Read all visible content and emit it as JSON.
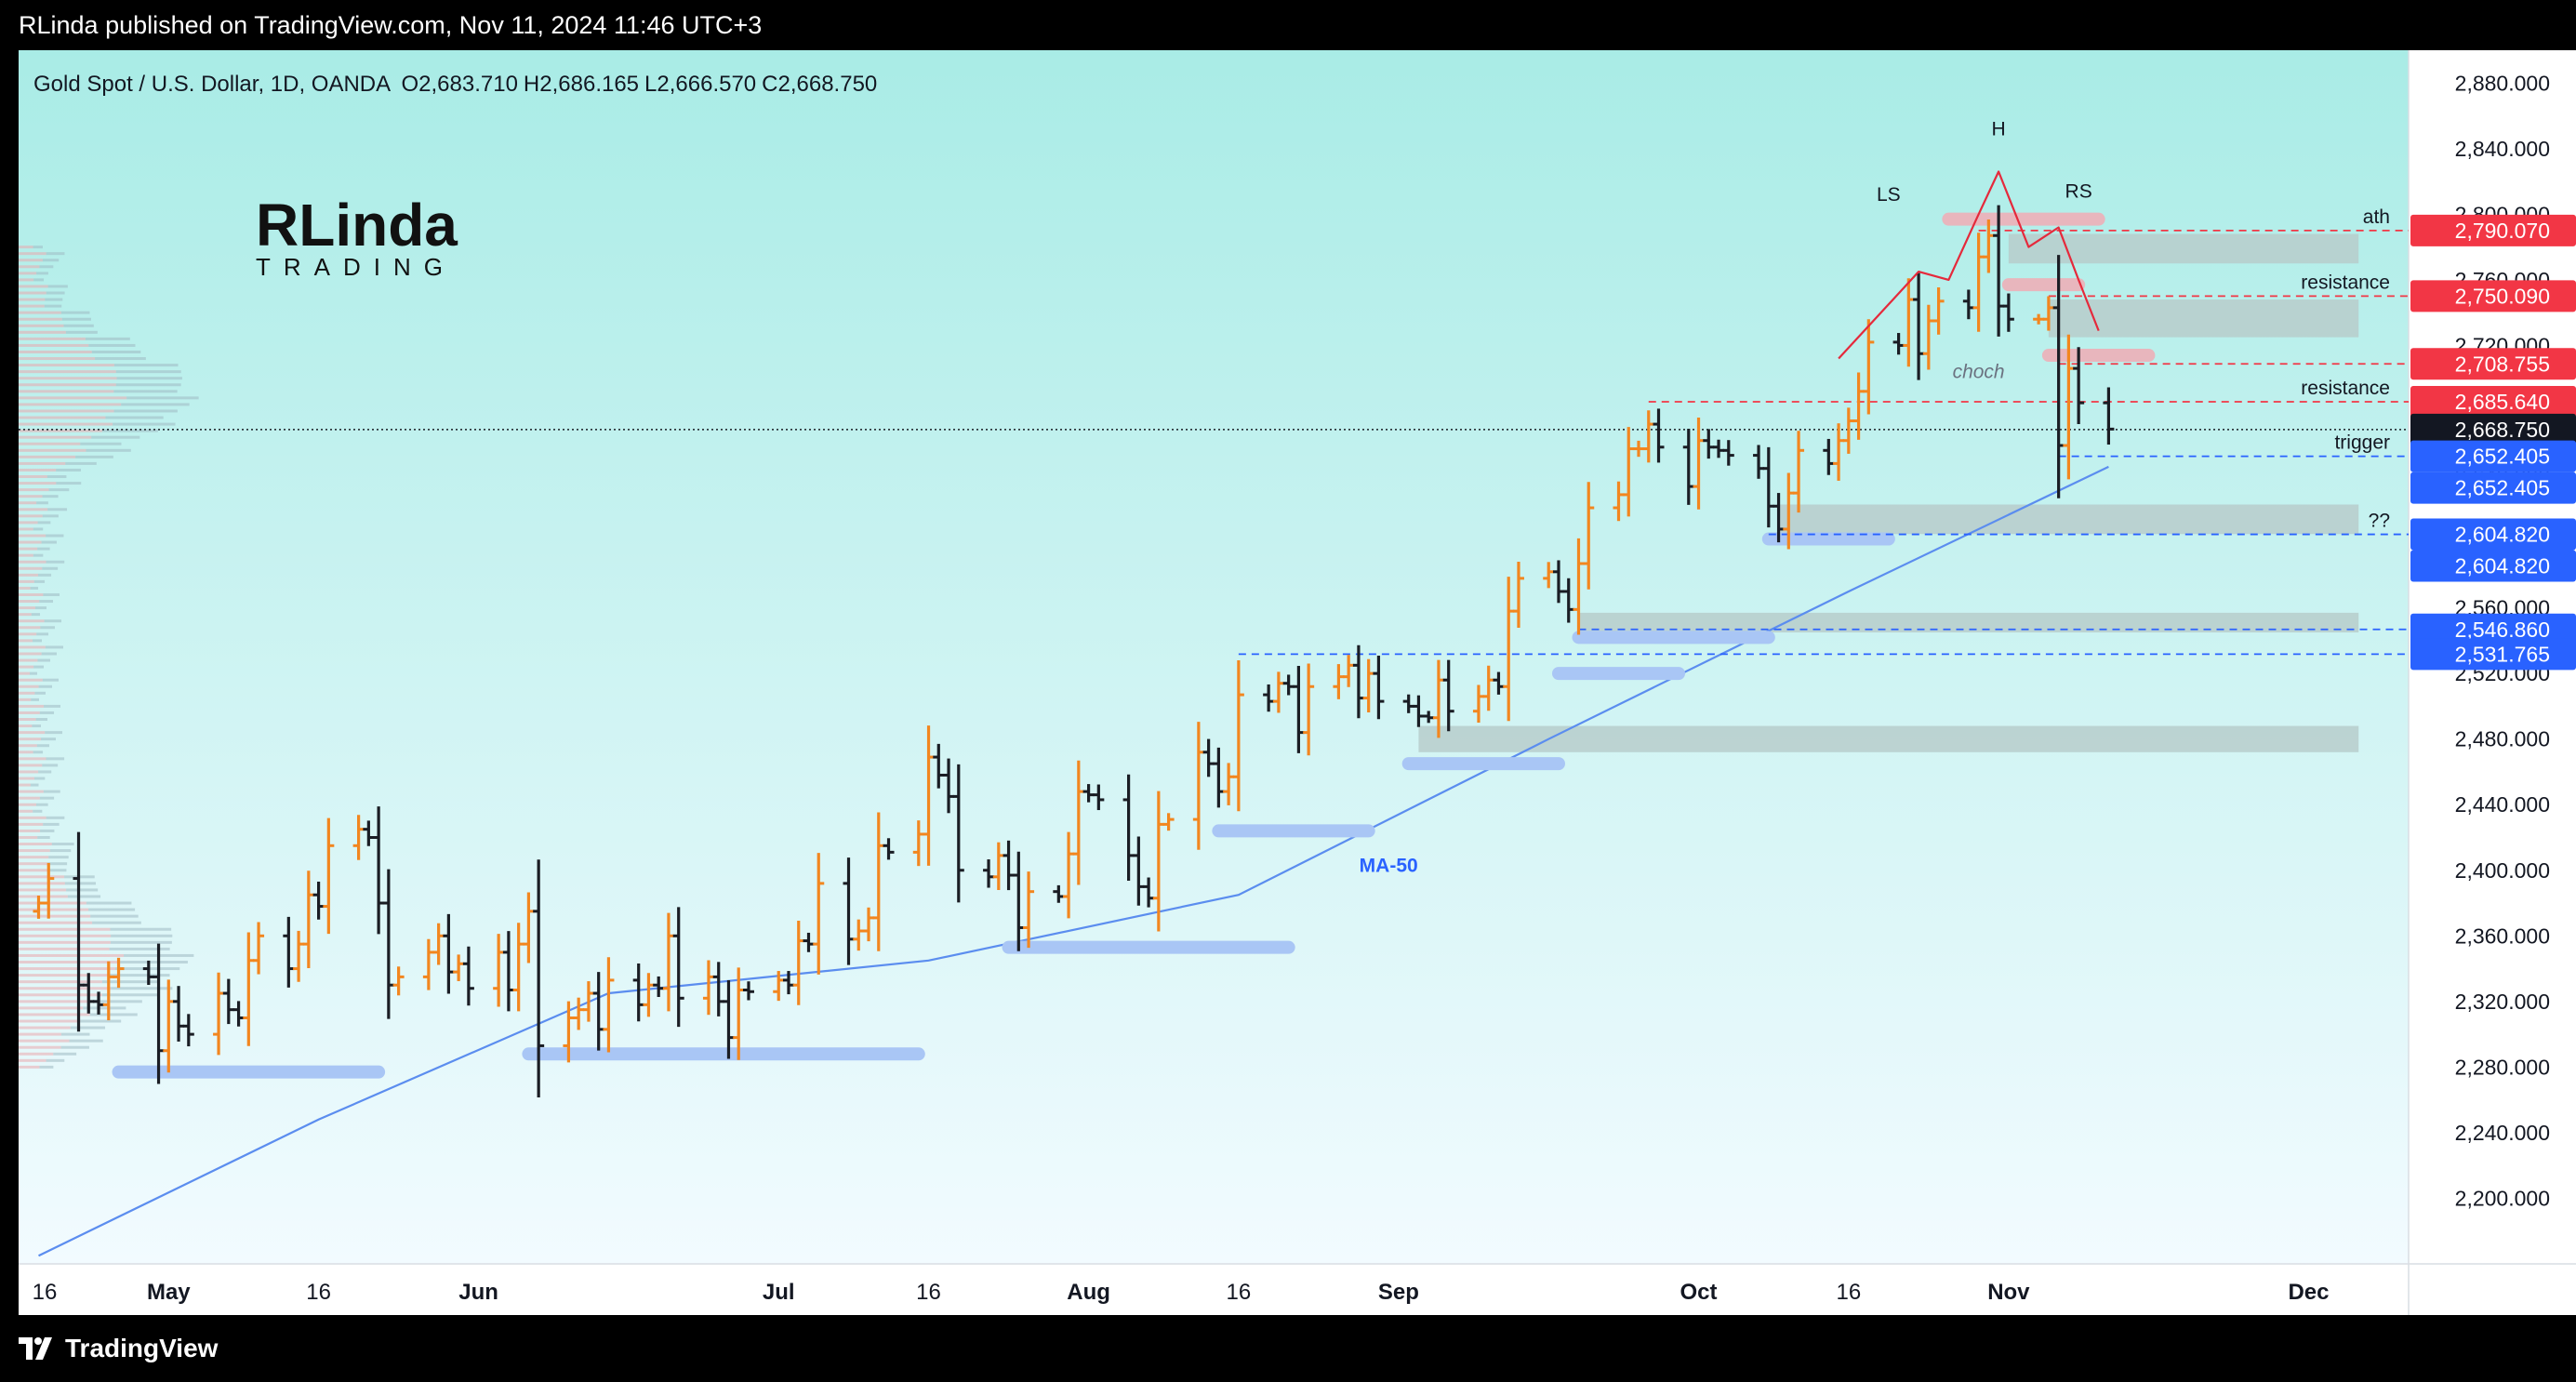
{
  "header": {
    "publisher": "RLinda published on TradingView.com, Nov 11, 2024 11:46 UTC+3"
  },
  "footer": {
    "brand": "TradingView"
  },
  "logo": {
    "text_top": "RLinda",
    "text_bottom": "TRADING"
  },
  "colors": {
    "bg_top": "#a9ece6",
    "bg_bottom": "#f2fbff",
    "up": "#f2861f",
    "down": "#1a1d24",
    "red": "#f23645",
    "blue": "#2962ff",
    "ma": "#5b8def",
    "zone_gray": "#b7cccb",
    "zone_blue": "#a9c6f5",
    "zone_red": "#e8b6bd"
  },
  "chart_data": {
    "type": "ohlc",
    "symbol_line": "Gold Spot / U.S. Dollar, 1D, OANDA",
    "ohlc": {
      "o": "O2,683.710",
      "h": "H2,686.165",
      "l": "L2,666.570",
      "c": "C2,668.750"
    },
    "ylim": [
      2160,
      2900
    ],
    "y_ticks": [
      2200,
      2240,
      2280,
      2320,
      2360,
      2400,
      2440,
      2480,
      2520,
      2560,
      2600,
      2640,
      2680,
      2720,
      2760,
      2800,
      2840,
      2880
    ],
    "y_tick_labels": [
      "2,200.000",
      "2,240.000",
      "2,280.000",
      "2,320.000",
      "2,360.000",
      "2,400.000",
      "2,440.000",
      "2,480.000",
      "2,520.000",
      "2,560.000",
      "2,600.000",
      "2,640.000",
      "2,680.000",
      "2,720.000",
      "2,760.000",
      "2,800.000",
      "2,840.000",
      "2,880.000"
    ],
    "x_labels": [
      {
        "label": "16",
        "date": "2024-04-16"
      },
      {
        "label": "May",
        "date": "2024-05-01"
      },
      {
        "label": "16",
        "date": "2024-05-16"
      },
      {
        "label": "Jun",
        "date": "2024-06-01"
      },
      {
        "label": "Jul",
        "date": "2024-07-01"
      },
      {
        "label": "16",
        "date": "2024-07-16"
      },
      {
        "label": "Aug",
        "date": "2024-08-01"
      },
      {
        "label": "16",
        "date": "2024-08-16"
      },
      {
        "label": "Sep",
        "date": "2024-09-01"
      },
      {
        "label": "Oct",
        "date": "2024-10-01"
      },
      {
        "label": "16",
        "date": "2024-10-16"
      },
      {
        "label": "Nov",
        "date": "2024-11-01"
      },
      {
        "label": "Dec",
        "date": "2024-12-01"
      }
    ],
    "x_start": "2024-04-16",
    "x_end": "2024-12-11",
    "waypoints": [
      [
        "2024-04-18",
        2380
      ],
      [
        "2024-04-19",
        2395
      ],
      [
        "2024-04-22",
        2330
      ],
      [
        "2024-04-23",
        2320
      ],
      [
        "2024-04-24",
        2318
      ],
      [
        "2024-04-25",
        2335
      ],
      [
        "2024-04-26",
        2340
      ],
      [
        "2024-04-29",
        2335
      ],
      [
        "2024-04-30",
        2290
      ],
      [
        "2024-05-01",
        2320
      ],
      [
        "2024-05-02",
        2305
      ],
      [
        "2024-05-03",
        2300
      ],
      [
        "2024-05-06",
        2325
      ],
      [
        "2024-05-07",
        2315
      ],
      [
        "2024-05-08",
        2310
      ],
      [
        "2024-05-09",
        2345
      ],
      [
        "2024-05-10",
        2360
      ],
      [
        "2024-05-13",
        2340
      ],
      [
        "2024-05-14",
        2355
      ],
      [
        "2024-05-15",
        2385
      ],
      [
        "2024-05-16",
        2378
      ],
      [
        "2024-05-17",
        2415
      ],
      [
        "2024-05-20",
        2425
      ],
      [
        "2024-05-21",
        2420
      ],
      [
        "2024-05-22",
        2380
      ],
      [
        "2024-05-23",
        2330
      ],
      [
        "2024-05-24",
        2335
      ],
      [
        "2024-05-27",
        2350
      ],
      [
        "2024-05-28",
        2360
      ],
      [
        "2024-05-29",
        2338
      ],
      [
        "2024-05-30",
        2343
      ],
      [
        "2024-05-31",
        2328
      ],
      [
        "2024-06-03",
        2350
      ],
      [
        "2024-06-04",
        2327
      ],
      [
        "2024-06-05",
        2355
      ],
      [
        "2024-06-06",
        2375
      ],
      [
        "2024-06-07",
        2293
      ],
      [
        "2024-06-10",
        2310
      ],
      [
        "2024-06-11",
        2315
      ],
      [
        "2024-06-12",
        2325
      ],
      [
        "2024-06-13",
        2303
      ],
      [
        "2024-06-14",
        2333
      ],
      [
        "2024-06-17",
        2318
      ],
      [
        "2024-06-18",
        2330
      ],
      [
        "2024-06-19",
        2328
      ],
      [
        "2024-06-20",
        2360
      ],
      [
        "2024-06-21",
        2322
      ],
      [
        "2024-06-24",
        2335
      ],
      [
        "2024-06-25",
        2320
      ],
      [
        "2024-06-26",
        2298
      ],
      [
        "2024-06-27",
        2327
      ],
      [
        "2024-06-28",
        2326
      ],
      [
        "2024-07-01",
        2333
      ],
      [
        "2024-07-02",
        2330
      ],
      [
        "2024-07-03",
        2357
      ],
      [
        "2024-07-04",
        2355
      ],
      [
        "2024-07-05",
        2392
      ],
      [
        "2024-07-08",
        2358
      ],
      [
        "2024-07-09",
        2363
      ],
      [
        "2024-07-10",
        2371
      ],
      [
        "2024-07-11",
        2415
      ],
      [
        "2024-07-12",
        2411
      ],
      [
        "2024-07-15",
        2422
      ],
      [
        "2024-07-16",
        2469
      ],
      [
        "2024-07-17",
        2458
      ],
      [
        "2024-07-18",
        2445
      ],
      [
        "2024-07-19",
        2400
      ],
      [
        "2024-07-22",
        2396
      ],
      [
        "2024-07-23",
        2409
      ],
      [
        "2024-07-24",
        2397
      ],
      [
        "2024-07-25",
        2365
      ],
      [
        "2024-07-26",
        2387
      ],
      [
        "2024-07-29",
        2384
      ],
      [
        "2024-07-30",
        2410
      ],
      [
        "2024-07-31",
        2448
      ],
      [
        "2024-08-01",
        2446
      ],
      [
        "2024-08-02",
        2443
      ],
      [
        "2024-08-05",
        2409
      ],
      [
        "2024-08-06",
        2390
      ],
      [
        "2024-08-07",
        2383
      ],
      [
        "2024-08-08",
        2428
      ],
      [
        "2024-08-09",
        2431
      ],
      [
        "2024-08-12",
        2472
      ],
      [
        "2024-08-13",
        2465
      ],
      [
        "2024-08-14",
        2448
      ],
      [
        "2024-08-15",
        2457
      ],
      [
        "2024-08-16",
        2507
      ],
      [
        "2024-08-19",
        2503
      ],
      [
        "2024-08-20",
        2514
      ],
      [
        "2024-08-21",
        2512
      ],
      [
        "2024-08-22",
        2484
      ],
      [
        "2024-08-23",
        2512
      ],
      [
        "2024-08-26",
        2518
      ],
      [
        "2024-08-27",
        2525
      ],
      [
        "2024-08-28",
        2505
      ],
      [
        "2024-08-29",
        2520
      ],
      [
        "2024-08-30",
        2503
      ],
      [
        "2024-09-02",
        2500
      ],
      [
        "2024-09-03",
        2494
      ],
      [
        "2024-09-04",
        2493
      ],
      [
        "2024-09-05",
        2516
      ],
      [
        "2024-09-06",
        2497
      ],
      [
        "2024-09-09",
        2506
      ],
      [
        "2024-09-10",
        2516
      ],
      [
        "2024-09-11",
        2512
      ],
      [
        "2024-09-12",
        2558
      ],
      [
        "2024-09-13",
        2578
      ],
      [
        "2024-09-16",
        2582
      ],
      [
        "2024-09-17",
        2570
      ],
      [
        "2024-09-18",
        2559
      ],
      [
        "2024-09-19",
        2587
      ],
      [
        "2024-09-20",
        2621
      ],
      [
        "2024-09-23",
        2629
      ],
      [
        "2024-09-24",
        2657
      ],
      [
        "2024-09-25",
        2657
      ],
      [
        "2024-09-26",
        2672
      ],
      [
        "2024-09-27",
        2658
      ],
      [
        "2024-09-30",
        2634
      ],
      [
        "2024-10-01",
        2662
      ],
      [
        "2024-10-02",
        2658
      ],
      [
        "2024-10-03",
        2656
      ],
      [
        "2024-10-04",
        2653
      ],
      [
        "2024-10-07",
        2645
      ],
      [
        "2024-10-08",
        2622
      ],
      [
        "2024-10-09",
        2608
      ],
      [
        "2024-10-10",
        2630
      ],
      [
        "2024-10-11",
        2656
      ],
      [
        "2024-10-14",
        2648
      ],
      [
        "2024-10-15",
        2662
      ],
      [
        "2024-10-16",
        2674
      ],
      [
        "2024-10-17",
        2692
      ],
      [
        "2024-10-18",
        2722
      ],
      [
        "2024-10-21",
        2720
      ],
      [
        "2024-10-22",
        2748
      ],
      [
        "2024-10-23",
        2715
      ],
      [
        "2024-10-24",
        2735
      ],
      [
        "2024-10-25",
        2747
      ],
      [
        "2024-10-28",
        2743
      ],
      [
        "2024-10-29",
        2774
      ],
      [
        "2024-10-30",
        2787
      ],
      [
        "2024-10-31",
        2744
      ],
      [
        "2024-11-01",
        2736
      ],
      [
        "2024-11-04",
        2736
      ],
      [
        "2024-11-05",
        2743
      ],
      [
        "2024-11-06",
        2659
      ],
      [
        "2024-11-07",
        2706
      ],
      [
        "2024-11-08",
        2685
      ],
      [
        "2024-11-11",
        2669
      ]
    ],
    "ma50": [
      [
        "2024-04-18",
        2165
      ],
      [
        "2024-05-16",
        2248
      ],
      [
        "2024-06-14",
        2325
      ],
      [
        "2024-07-16",
        2345
      ],
      [
        "2024-08-16",
        2385
      ],
      [
        "2024-09-16",
        2480
      ],
      [
        "2024-10-16",
        2570
      ],
      [
        "2024-11-11",
        2646
      ]
    ],
    "ma_label": "MA-50",
    "price_labels": [
      {
        "value": 2790.07,
        "text": "2,790.070",
        "color": "red"
      },
      {
        "value": 2750.09,
        "text": "2,750.090",
        "color": "red"
      },
      {
        "value": 2708.755,
        "text": "2,708.755",
        "color": "red"
      },
      {
        "value": 2685.64,
        "text": "2,685.640",
        "color": "red"
      },
      {
        "value": 2668.75,
        "text": "2,668.750",
        "color": "black"
      },
      {
        "value": 2652.405,
        "text": "2,652.405",
        "color": "blue"
      },
      {
        "value": 2652.405,
        "text": "2,652.405",
        "color": "blue"
      },
      {
        "value": 2604.82,
        "text": "2,604.820",
        "color": "blue"
      },
      {
        "value": 2604.82,
        "text": "2,604.820",
        "color": "blue"
      },
      {
        "value": 2546.86,
        "text": "2,546.860",
        "color": "blue"
      },
      {
        "value": 2531.765,
        "text": "2,531.765",
        "color": "blue"
      }
    ],
    "level_lines": [
      {
        "value": 2790.07,
        "from": "2024-10-29",
        "color": "red",
        "label": "ath"
      },
      {
        "value": 2750.09,
        "from": "2024-11-05",
        "color": "red",
        "label": "resistance"
      },
      {
        "value": 2708.755,
        "from": "2024-11-06",
        "color": "red",
        "label": ""
      },
      {
        "value": 2685.64,
        "from": "2024-09-26",
        "color": "red",
        "label": "resistance"
      },
      {
        "value": 2652.405,
        "from": "2024-11-06",
        "color": "blue",
        "label": "trigger"
      },
      {
        "value": 2604.82,
        "from": "2024-10-08",
        "color": "blue",
        "label": "??"
      },
      {
        "value": 2546.86,
        "from": "2024-09-19",
        "color": "blue",
        "label": ""
      },
      {
        "value": 2531.765,
        "from": "2024-08-16",
        "color": "blue",
        "label": ""
      }
    ],
    "gray_zones": [
      {
        "from": "2024-11-01",
        "to": "2024-12-06",
        "top": 2788,
        "bottom": 2770
      },
      {
        "from": "2024-11-05",
        "to": "2024-12-06",
        "top": 2748,
        "bottom": 2725
      },
      {
        "from": "2024-10-09",
        "to": "2024-12-06",
        "top": 2623,
        "bottom": 2605
      },
      {
        "from": "2024-09-19",
        "to": "2024-12-06",
        "top": 2557,
        "bottom": 2545
      },
      {
        "from": "2024-09-03",
        "to": "2024-12-06",
        "top": 2488,
        "bottom": 2472
      }
    ],
    "blue_zones": [
      {
        "from": "2024-04-26",
        "to": "2024-05-22",
        "value": 2277
      },
      {
        "from": "2024-06-06",
        "to": "2024-07-15",
        "value": 2288
      },
      {
        "from": "2024-07-24",
        "to": "2024-08-21",
        "value": 2353
      },
      {
        "from": "2024-08-14",
        "to": "2024-08-29",
        "value": 2424
      },
      {
        "from": "2024-09-02",
        "to": "2024-09-17",
        "value": 2465
      },
      {
        "from": "2024-09-17",
        "to": "2024-09-29",
        "value": 2520
      },
      {
        "from": "2024-09-19",
        "to": "2024-10-08",
        "value": 2542
      },
      {
        "from": "2024-10-08",
        "to": "2024-10-20",
        "value": 2602
      }
    ],
    "red_zones": [
      {
        "from": "2024-10-26",
        "to": "2024-11-10",
        "value": 2797
      },
      {
        "from": "2024-11-01",
        "to": "2024-11-08",
        "value": 2757
      },
      {
        "from": "2024-11-05",
        "to": "2024-11-15",
        "value": 2714
      }
    ],
    "hs_path": [
      [
        "2024-10-15",
        2712
      ],
      [
        "2024-10-20",
        2745
      ],
      [
        "2024-10-23",
        2765
      ],
      [
        "2024-10-26",
        2760
      ],
      [
        "2024-10-29",
        2800
      ],
      [
        "2024-10-31",
        2826
      ],
      [
        "2024-11-03",
        2780
      ],
      [
        "2024-11-06",
        2792
      ],
      [
        "2024-11-08",
        2760
      ],
      [
        "2024-11-10",
        2729
      ]
    ],
    "annotations": [
      {
        "text": "LS",
        "date": "2024-10-20",
        "value": 2808
      },
      {
        "text": "H",
        "date": "2024-10-31",
        "value": 2848
      },
      {
        "text": "RS",
        "date": "2024-11-08",
        "value": 2810
      },
      {
        "text": "choch",
        "date": "2024-10-29",
        "value": 2700
      }
    ]
  }
}
